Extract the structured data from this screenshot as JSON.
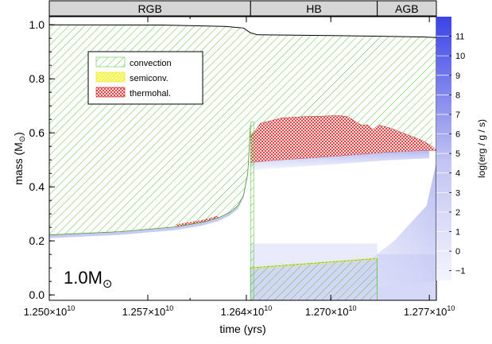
{
  "chart_data": {
    "type": "area",
    "xlabel": "time (yrs)",
    "ylabel": "mass (M",
    "ylabel_sub": "⊙",
    "ylabel_close": ")",
    "xlim": [
      12500000000.0,
      12775000000.0
    ],
    "ylim": [
      -0.02,
      1.03
    ],
    "x_ticks": [
      {
        "value": 12500000000.0,
        "mant": "1.250",
        "base": "×10",
        "exp": "10"
      },
      {
        "value": 12570000000.0,
        "mant": "1.257",
        "base": "×10",
        "exp": "10"
      },
      {
        "value": 12640000000.0,
        "mant": "1.264",
        "base": "×10",
        "exp": "10"
      },
      {
        "value": 12700000000.0,
        "mant": "1.270",
        "base": "×10",
        "exp": "10"
      },
      {
        "value": 12770000000.0,
        "mant": "1.277",
        "base": "×10",
        "exp": "10"
      }
    ],
    "y_ticks": [
      {
        "value": 0.0,
        "label": "0.0"
      },
      {
        "value": 0.2,
        "label": "0.2"
      },
      {
        "value": 0.4,
        "label": "0.4"
      },
      {
        "value": 0.6,
        "label": "0.6"
      },
      {
        "value": 0.8,
        "label": "0.8"
      },
      {
        "value": 1.0,
        "label": "1.0"
      }
    ],
    "phases": [
      {
        "label": "RGB",
        "start": 12500000000.0,
        "end": 12643000000.0
      },
      {
        "label": "HB",
        "start": 12643000000.0,
        "end": 12733000000.0
      },
      {
        "label": "AGB",
        "start": 12733000000.0,
        "end": 12775000000.0
      }
    ],
    "legend": [
      {
        "label": "convection",
        "pattern": "conv"
      },
      {
        "label": "semiconv.",
        "pattern": "semi"
      },
      {
        "label": "thermohal.",
        "pattern": "thermo"
      }
    ],
    "annotation": {
      "text": "1.0M",
      "sub": "⊙"
    },
    "colorbar": {
      "label": "log(erg / g / s)",
      "min": -1.5,
      "max": 12,
      "ticks": [
        -1,
        0,
        1,
        2,
        3,
        4,
        5,
        6,
        7,
        8,
        9,
        10,
        11
      ],
      "color": "#3a43e8"
    },
    "series": [
      {
        "name": "stellar mass",
        "x": [
          12500000000.0,
          12580000000.0,
          12625000000.0,
          12638000000.0,
          12643000000.0,
          12648000000.0,
          12700000000.0,
          12730000000.0,
          12765000000.0,
          12775000000.0
        ],
        "y": [
          1.0,
          0.999,
          0.994,
          0.988,
          0.97,
          0.963,
          0.96,
          0.958,
          0.955,
          0.953
        ]
      },
      {
        "name": "RGB core boundary",
        "x": [
          12500000000.0,
          12550000000.0,
          12590000000.0,
          12610000000.0,
          12620000000.0,
          12628000000.0,
          12634000000.0,
          12638000000.0,
          12641000000.0,
          12643000000.0
        ],
        "y": [
          0.222,
          0.234,
          0.252,
          0.27,
          0.285,
          0.305,
          0.33,
          0.37,
          0.45,
          0.63
        ]
      },
      {
        "name": "HB envelope convection base",
        "x": [
          12643000000.0,
          12660000000.0,
          12700000000.0,
          12740000000.0,
          12770000000.0
        ],
        "y": [
          0.49,
          0.498,
          0.512,
          0.528,
          0.535
        ]
      },
      {
        "name": "thermohaline upper edge",
        "x": [
          12643000000.0,
          12650000000.0,
          12665000000.0,
          12680000000.0,
          12695000000.0,
          12705000000.0,
          12712000000.0,
          12722000000.0,
          12726000000.0,
          12730000000.0,
          12734000000.0,
          12742000000.0,
          12750000000.0,
          12765000000.0,
          12772000000.0
        ],
        "y": [
          0.585,
          0.635,
          0.655,
          0.66,
          0.662,
          0.664,
          0.66,
          0.628,
          0.63,
          0.612,
          0.629,
          0.618,
          0.602,
          0.572,
          0.55
        ]
      },
      {
        "name": "convective core top",
        "x": [
          12643000000.0,
          12733000000.0
        ],
        "y": [
          0.1,
          0.135
        ]
      }
    ]
  }
}
